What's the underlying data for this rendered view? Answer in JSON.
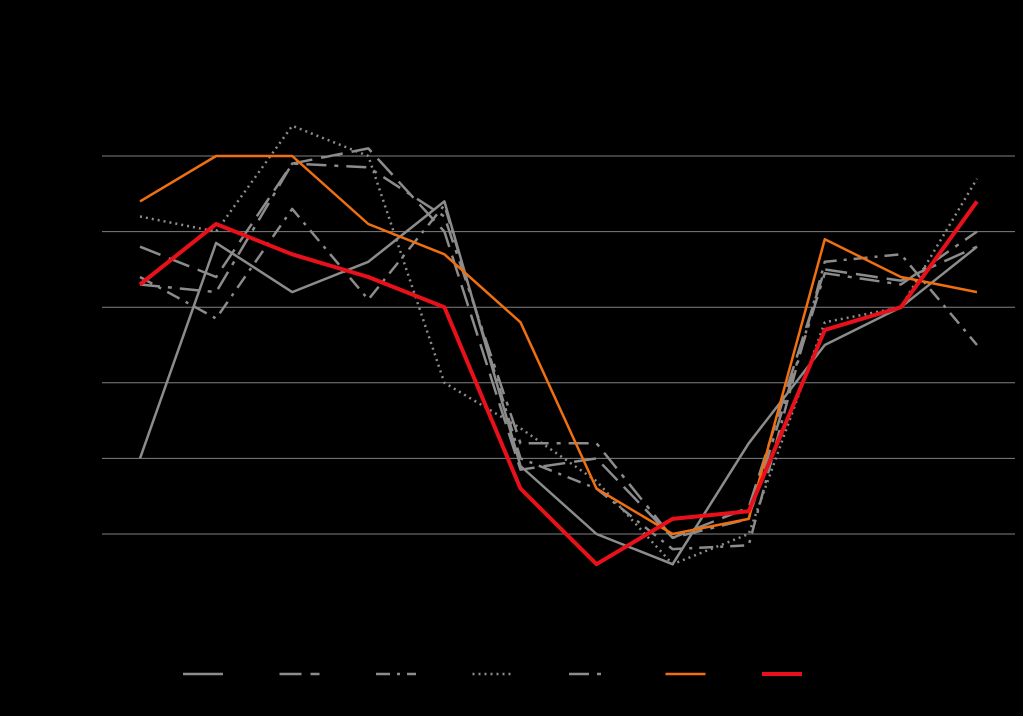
{
  "chart_data": {
    "type": "line",
    "title": "",
    "xlabel": "",
    "ylabel": "",
    "x": [
      1,
      2,
      3,
      4,
      5,
      6,
      7,
      8,
      9,
      10,
      11,
      12
    ],
    "ylim": [
      -2,
      6
    ],
    "yticks": [
      0,
      1,
      2,
      3,
      4,
      5
    ],
    "grid": true,
    "legend_position": "bottom",
    "background": "#000000",
    "gridline_color": "#808080",
    "series": [
      {
        "values": [
          1.0,
          3.85,
          3.2,
          3.6,
          4.4,
          0.9,
          0.0,
          -0.4,
          1.2,
          2.5,
          3.0,
          3.8
        ],
        "color": "#8c8c8c",
        "dash": "solid",
        "width": 2.5
      },
      {
        "values": [
          3.8,
          3.4,
          4.9,
          5.1,
          4.0,
          0.85,
          1.0,
          -0.05,
          0.35,
          3.5,
          3.35,
          3.8
        ],
        "color": "#8c8c8c",
        "dash": "longdash",
        "width": 2.5
      },
      {
        "values": [
          3.4,
          2.85,
          4.3,
          3.1,
          4.35,
          1.0,
          0.6,
          -0.2,
          -0.15,
          3.6,
          3.7,
          2.5
        ],
        "color": "#8c8c8c",
        "dash": "dashdot",
        "width": 2.5
      },
      {
        "values": [
          4.2,
          4.0,
          5.4,
          5.0,
          2.0,
          1.4,
          0.7,
          -0.4,
          0.0,
          2.8,
          3.0,
          4.7
        ],
        "color": "#8c8c8c",
        "dash": "dot",
        "width": 2.5
      },
      {
        "values": [
          3.3,
          3.2,
          4.9,
          4.85,
          4.2,
          1.2,
          1.2,
          -0.05,
          0.2,
          3.45,
          3.3,
          4.0
        ],
        "color": "#8c8c8c",
        "dash": "longdashdot",
        "width": 2.5
      },
      {
        "values": [
          4.4,
          5.0,
          5.0,
          4.1,
          3.7,
          2.8,
          0.6,
          0.0,
          0.2,
          3.9,
          3.4,
          3.2
        ],
        "color": "#f07010",
        "dash": "solid",
        "width": 2.5
      },
      {
        "values": [
          3.3,
          4.1,
          3.7,
          3.4,
          3.0,
          0.6,
          -0.4,
          0.2,
          0.3,
          2.7,
          3.0,
          4.4
        ],
        "color": "#e8101a",
        "dash": "solid",
        "width": 4
      }
    ]
  }
}
